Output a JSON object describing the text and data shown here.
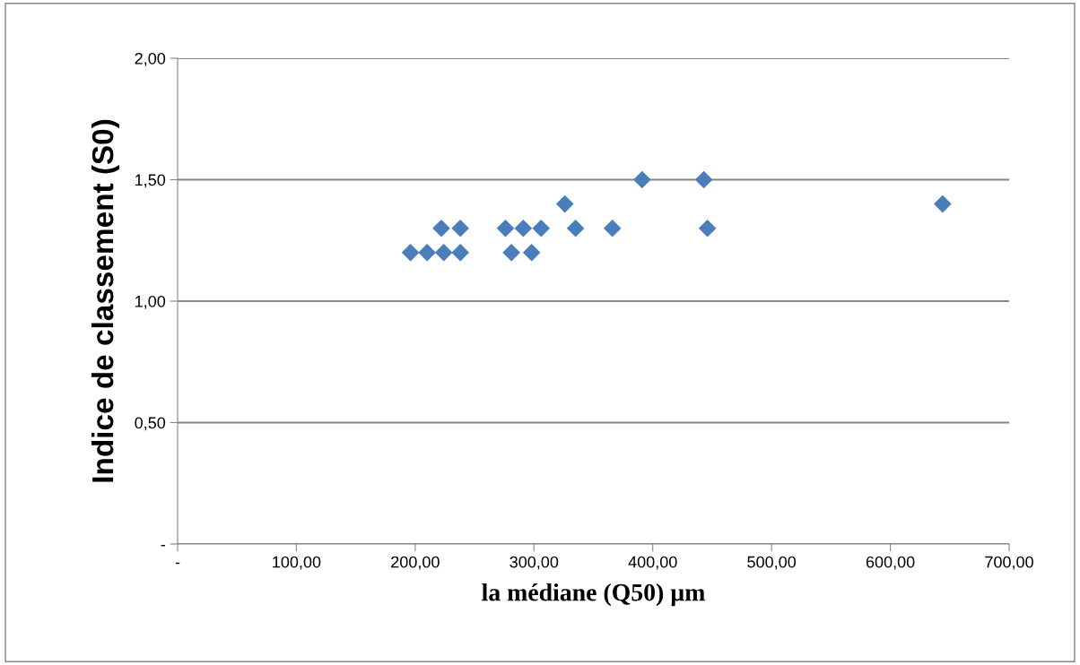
{
  "chart_data": {
    "type": "scatter",
    "xlabel": "la médiane (Q50) µm",
    "ylabel": "Indice de classement (S0)",
    "x": [
      196,
      210,
      224,
      238,
      222,
      238,
      276,
      291,
      306,
      281,
      298,
      326,
      335,
      366,
      391,
      443,
      446,
      644
    ],
    "values": [
      1.2,
      1.2,
      1.2,
      1.2,
      1.3,
      1.3,
      1.3,
      1.3,
      1.3,
      1.2,
      1.2,
      1.4,
      1.3,
      1.3,
      1.5,
      1.5,
      1.3,
      1.4
    ],
    "color": "#4a7ebb",
    "marker": "diamond",
    "xlim": [
      0,
      700
    ],
    "xticks": [
      {
        "value": 0,
        "label": "-"
      },
      {
        "value": 100,
        "label": "100,00"
      },
      {
        "value": 200,
        "label": "200,00"
      },
      {
        "value": 300,
        "label": "300,00"
      },
      {
        "value": 400,
        "label": "400,00"
      },
      {
        "value": 500,
        "label": "500,00"
      },
      {
        "value": 600,
        "label": "600,00"
      },
      {
        "value": 700,
        "label": "700,00"
      }
    ],
    "ylim": [
      0,
      2
    ],
    "yticks": [
      {
        "value": 0,
        "label": "-"
      },
      {
        "value": 0.5,
        "label": "0,50"
      },
      {
        "value": 1,
        "label": "1,00"
      },
      {
        "value": 1.5,
        "label": "1,50"
      },
      {
        "value": 2,
        "label": "2,00"
      }
    ],
    "grid": "y"
  }
}
